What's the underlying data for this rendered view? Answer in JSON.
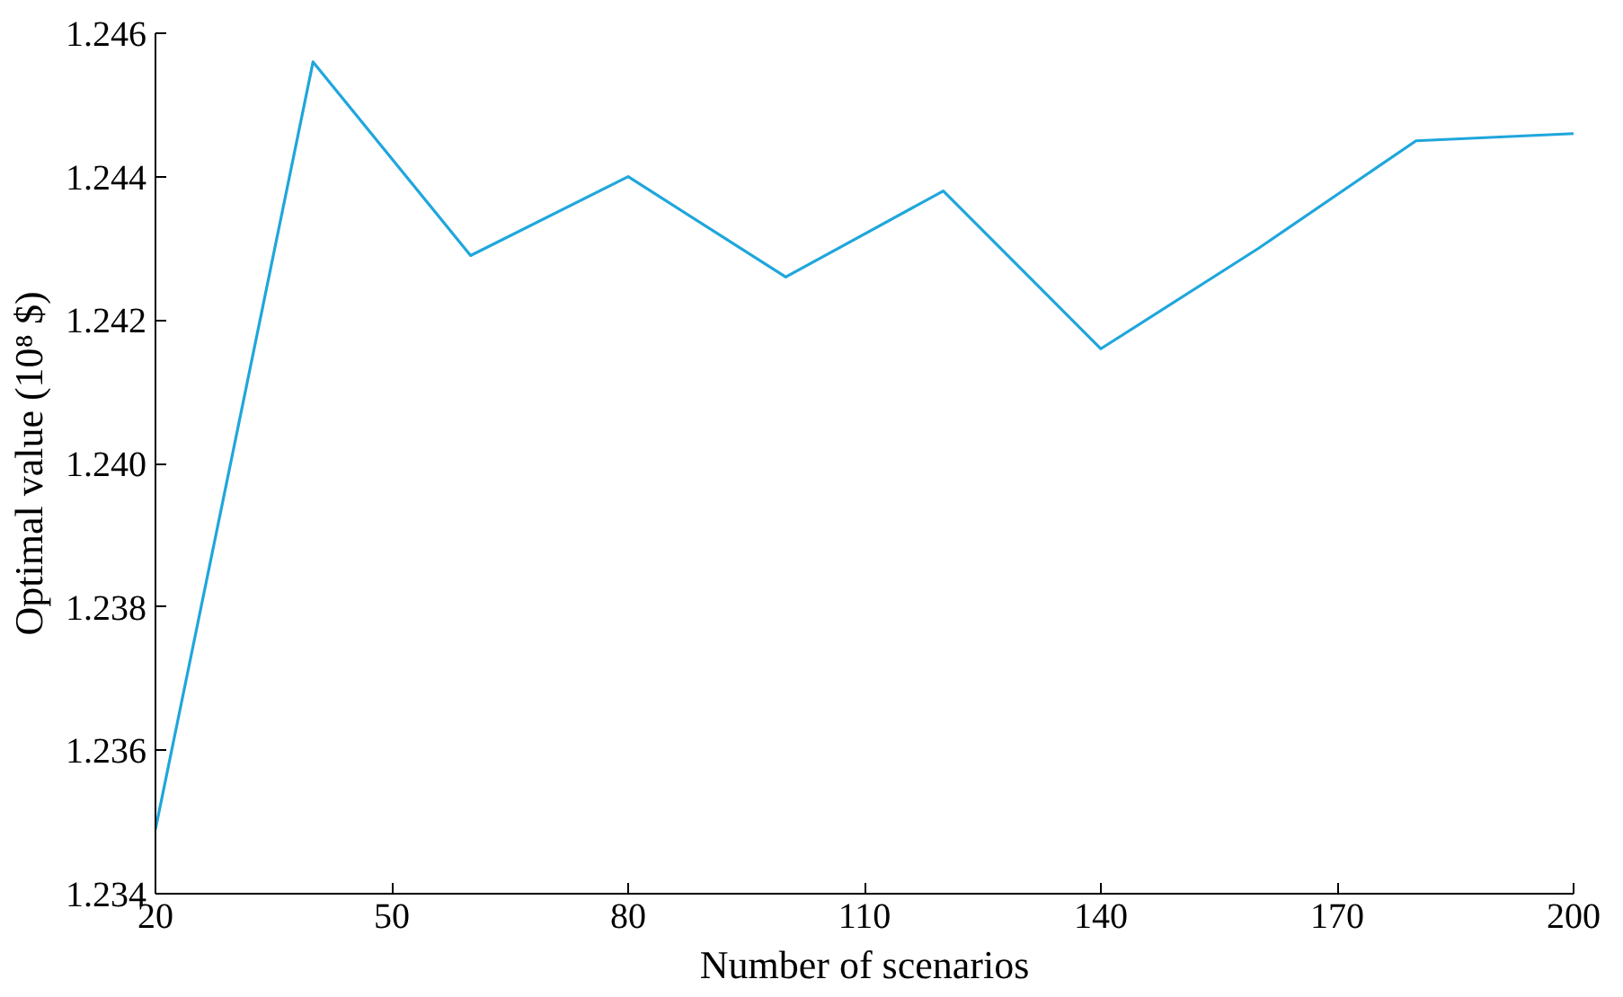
{
  "chart_data": {
    "type": "line",
    "xlabel": "Number of scenarios",
    "ylabel": "Optimal value (10⁸ $)",
    "x": [
      20,
      40,
      60,
      80,
      100,
      120,
      140,
      160,
      180,
      200
    ],
    "series": [
      {
        "color": "#1fa6dc",
        "values": [
          1.2349,
          1.2456,
          1.2429,
          1.244,
          1.2426,
          1.2438,
          1.2416,
          1.243,
          1.2445,
          1.2446
        ]
      }
    ],
    "xlim": [
      20,
      200
    ],
    "xticks": [
      20,
      50,
      80,
      110,
      140,
      170,
      200
    ],
    "ylim": [
      1.234,
      1.246
    ],
    "yticks": [
      {
        "value": 1.234,
        "label": "1.234"
      },
      {
        "value": 1.236,
        "label": "1.236"
      },
      {
        "value": 1.238,
        "label": "1.238"
      },
      {
        "value": 1.24,
        "label": "1.240"
      },
      {
        "value": 1.242,
        "label": "1.242"
      },
      {
        "value": 1.244,
        "label": "1.244"
      },
      {
        "value": 1.246,
        "label": "1.246"
      }
    ],
    "grid": false,
    "marker": "none",
    "line_style": "solid"
  }
}
